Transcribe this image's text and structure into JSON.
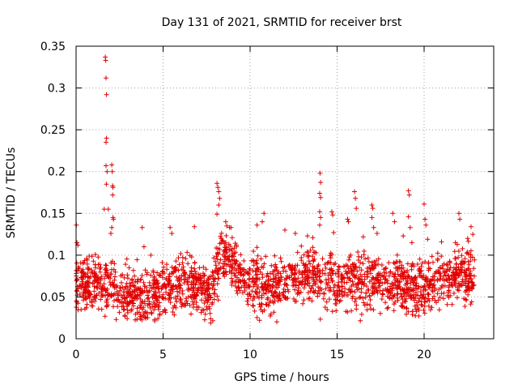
{
  "chart_data": {
    "type": "scatter",
    "title": "Day 131 of 2021, SRMTID for receiver brst",
    "xlabel": "GPS time / hours",
    "ylabel": "SRMTID / TECUs",
    "xlim": [
      0,
      24
    ],
    "ylim": [
      0,
      0.35
    ],
    "xticks": [
      0,
      5,
      10,
      15,
      20
    ],
    "xtick_labels": [
      "0",
      "5",
      "10",
      "15",
      "20"
    ],
    "yticks": [
      0,
      0.05,
      0.1,
      0.15,
      0.2,
      0.25,
      0.3,
      0.35
    ],
    "ytick_labels": [
      "0",
      "0.05",
      "0.1",
      "0.15",
      "0.2",
      "0.25",
      "0.3",
      "0.35"
    ],
    "grid": true,
    "marker": "+",
    "color": "#e00000",
    "series": [
      {
        "name": "SRMTID",
        "description_of_bulk": "dense band of ~2000 points, mostly between 0.03 and 0.10 TECUs over 0-23 h",
        "baseline": [
          {
            "x": 0.0,
            "y": 0.062
          },
          {
            "x": 1.0,
            "y": 0.066
          },
          {
            "x": 2.0,
            "y": 0.065
          },
          {
            "x": 3.0,
            "y": 0.052
          },
          {
            "x": 4.0,
            "y": 0.05
          },
          {
            "x": 5.0,
            "y": 0.06
          },
          {
            "x": 6.0,
            "y": 0.066
          },
          {
            "x": 7.0,
            "y": 0.063
          },
          {
            "x": 7.8,
            "y": 0.055
          },
          {
            "x": 8.3,
            "y": 0.105
          },
          {
            "x": 9.0,
            "y": 0.095
          },
          {
            "x": 9.5,
            "y": 0.072
          },
          {
            "x": 10.5,
            "y": 0.065
          },
          {
            "x": 11.5,
            "y": 0.062
          },
          {
            "x": 12.5,
            "y": 0.07
          },
          {
            "x": 13.5,
            "y": 0.078
          },
          {
            "x": 14.2,
            "y": 0.07
          },
          {
            "x": 15.0,
            "y": 0.068
          },
          {
            "x": 16.0,
            "y": 0.072
          },
          {
            "x": 17.0,
            "y": 0.07
          },
          {
            "x": 18.0,
            "y": 0.064
          },
          {
            "x": 19.0,
            "y": 0.06
          },
          {
            "x": 20.0,
            "y": 0.06
          },
          {
            "x": 21.0,
            "y": 0.072
          },
          {
            "x": 22.0,
            "y": 0.078
          },
          {
            "x": 22.9,
            "y": 0.072
          }
        ],
        "outliers": [
          {
            "x": 0.02,
            "y": 0.136
          },
          {
            "x": 0.05,
            "y": 0.115
          },
          {
            "x": 0.1,
            "y": 0.112
          },
          {
            "x": 1.68,
            "y": 0.337
          },
          {
            "x": 1.7,
            "y": 0.333
          },
          {
            "x": 1.72,
            "y": 0.312
          },
          {
            "x": 1.75,
            "y": 0.292
          },
          {
            "x": 1.75,
            "y": 0.24
          },
          {
            "x": 1.72,
            "y": 0.235
          },
          {
            "x": 1.72,
            "y": 0.207
          },
          {
            "x": 1.78,
            "y": 0.2
          },
          {
            "x": 1.74,
            "y": 0.185
          },
          {
            "x": 2.05,
            "y": 0.208
          },
          {
            "x": 2.08,
            "y": 0.2
          },
          {
            "x": 2.1,
            "y": 0.183
          },
          {
            "x": 2.12,
            "y": 0.181
          },
          {
            "x": 2.1,
            "y": 0.172
          },
          {
            "x": 2.12,
            "y": 0.145
          },
          {
            "x": 2.15,
            "y": 0.143
          },
          {
            "x": 2.05,
            "y": 0.133
          },
          {
            "x": 2.0,
            "y": 0.126
          },
          {
            "x": 1.85,
            "y": 0.155
          },
          {
            "x": 1.62,
            "y": 0.155
          },
          {
            "x": 3.8,
            "y": 0.133
          },
          {
            "x": 3.9,
            "y": 0.11
          },
          {
            "x": 4.3,
            "y": 0.1
          },
          {
            "x": 5.4,
            "y": 0.133
          },
          {
            "x": 5.5,
            "y": 0.126
          },
          {
            "x": 6.8,
            "y": 0.134
          },
          {
            "x": 8.1,
            "y": 0.186
          },
          {
            "x": 8.15,
            "y": 0.181
          },
          {
            "x": 8.2,
            "y": 0.176
          },
          {
            "x": 8.25,
            "y": 0.168
          },
          {
            "x": 8.2,
            "y": 0.16
          },
          {
            "x": 8.1,
            "y": 0.149
          },
          {
            "x": 8.6,
            "y": 0.14
          },
          {
            "x": 8.9,
            "y": 0.133
          },
          {
            "x": 10.4,
            "y": 0.136
          },
          {
            "x": 10.8,
            "y": 0.15
          },
          {
            "x": 10.7,
            "y": 0.14
          },
          {
            "x": 12.0,
            "y": 0.13
          },
          {
            "x": 12.6,
            "y": 0.126
          },
          {
            "x": 13.3,
            "y": 0.123
          },
          {
            "x": 13.6,
            "y": 0.121
          },
          {
            "x": 14.02,
            "y": 0.198
          },
          {
            "x": 14.05,
            "y": 0.187
          },
          {
            "x": 14.0,
            "y": 0.174
          },
          {
            "x": 14.05,
            "y": 0.169
          },
          {
            "x": 14.0,
            "y": 0.152
          },
          {
            "x": 14.05,
            "y": 0.145
          },
          {
            "x": 14.0,
            "y": 0.136
          },
          {
            "x": 14.7,
            "y": 0.152
          },
          {
            "x": 14.75,
            "y": 0.148
          },
          {
            "x": 14.8,
            "y": 0.127
          },
          {
            "x": 15.6,
            "y": 0.143
          },
          {
            "x": 15.65,
            "y": 0.14
          },
          {
            "x": 16.0,
            "y": 0.176
          },
          {
            "x": 16.05,
            "y": 0.168
          },
          {
            "x": 16.1,
            "y": 0.156
          },
          {
            "x": 16.5,
            "y": 0.122
          },
          {
            "x": 17.0,
            "y": 0.16
          },
          {
            "x": 17.05,
            "y": 0.156
          },
          {
            "x": 17.0,
            "y": 0.145
          },
          {
            "x": 17.1,
            "y": 0.133
          },
          {
            "x": 17.3,
            "y": 0.126
          },
          {
            "x": 18.2,
            "y": 0.15
          },
          {
            "x": 18.3,
            "y": 0.14
          },
          {
            "x": 18.8,
            "y": 0.123
          },
          {
            "x": 19.1,
            "y": 0.177
          },
          {
            "x": 19.15,
            "y": 0.172
          },
          {
            "x": 19.1,
            "y": 0.146
          },
          {
            "x": 19.2,
            "y": 0.133
          },
          {
            "x": 19.3,
            "y": 0.115
          },
          {
            "x": 20.0,
            "y": 0.161
          },
          {
            "x": 20.05,
            "y": 0.143
          },
          {
            "x": 20.1,
            "y": 0.136
          },
          {
            "x": 20.2,
            "y": 0.119
          },
          {
            "x": 21.0,
            "y": 0.116
          },
          {
            "x": 21.8,
            "y": 0.115
          },
          {
            "x": 22.0,
            "y": 0.15
          },
          {
            "x": 22.05,
            "y": 0.143
          },
          {
            "x": 22.7,
            "y": 0.134
          },
          {
            "x": 22.8,
            "y": 0.125
          },
          {
            "x": 22.5,
            "y": 0.12
          }
        ]
      }
    ]
  }
}
